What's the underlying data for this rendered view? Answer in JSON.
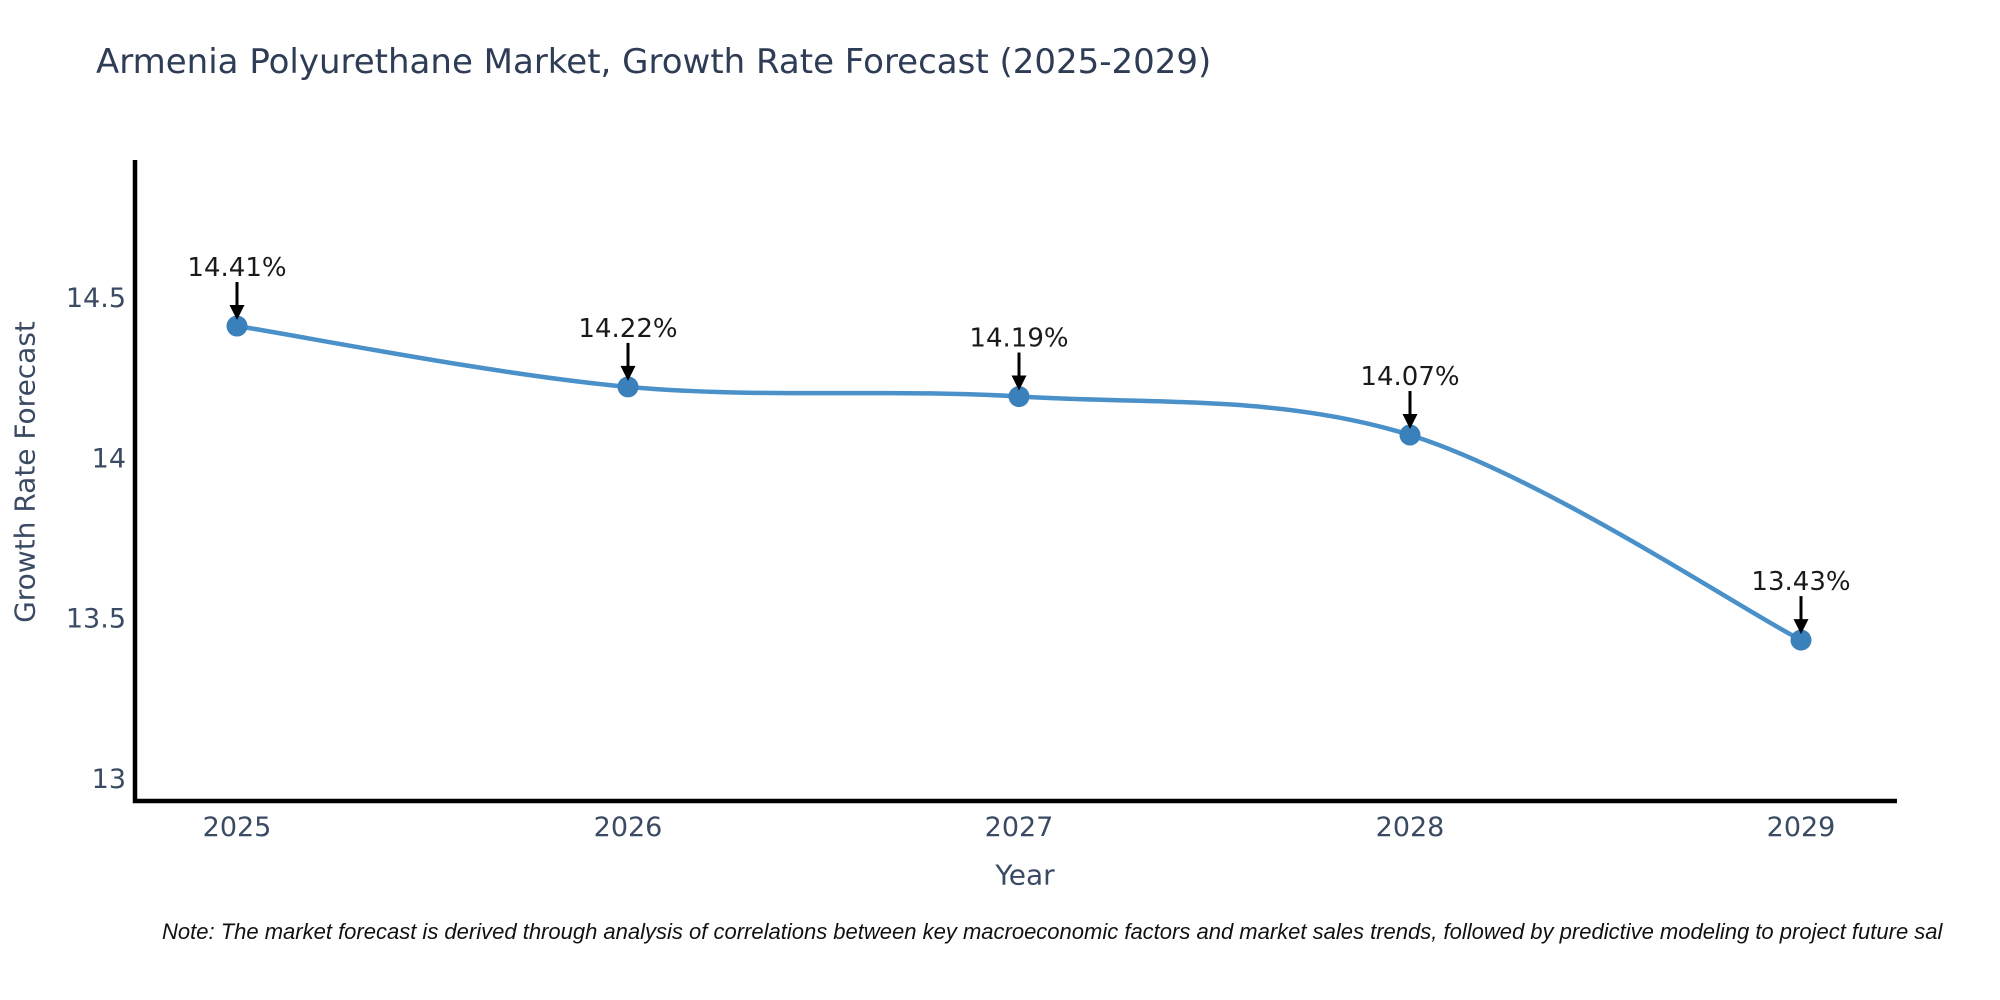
{
  "note": "Note: The market forecast is derived through analysis of correlations between key macroeconomic factors and market sales trends, followed by predictive modeling to project future sal",
  "chart_data": {
    "type": "line",
    "title": "Armenia Polyurethane Market, Growth Rate Forecast (2025-2029)",
    "xlabel": "Year",
    "ylabel": "Growth Rate Forecast",
    "categories": [
      "2025",
      "2026",
      "2027",
      "2028",
      "2029"
    ],
    "values": [
      14.41,
      14.22,
      14.19,
      14.07,
      13.43
    ],
    "point_labels": [
      "14.41%",
      "14.22%",
      "14.19%",
      "14.07%",
      "13.43%"
    ],
    "yticks": [
      13,
      13.5,
      14,
      14.5
    ],
    "ytick_labels": [
      "13",
      "13.5",
      "14",
      "14.5"
    ],
    "ylim": [
      12.928,
      14.928
    ],
    "grid": false,
    "legend": "none",
    "marker_style": "circle",
    "annotation_arrows": true,
    "colors": {
      "line": "#4a90c9",
      "marker": "#3a80ba",
      "annotation_text": "#1a1a1a",
      "arrow": "#000000",
      "axis_spine": "#000000",
      "tick_text": "#3a4a63",
      "axis_label_text": "#3a4a63",
      "title_text": "#2e3c55",
      "note_text": "#111111",
      "background": "#ffffff"
    }
  }
}
